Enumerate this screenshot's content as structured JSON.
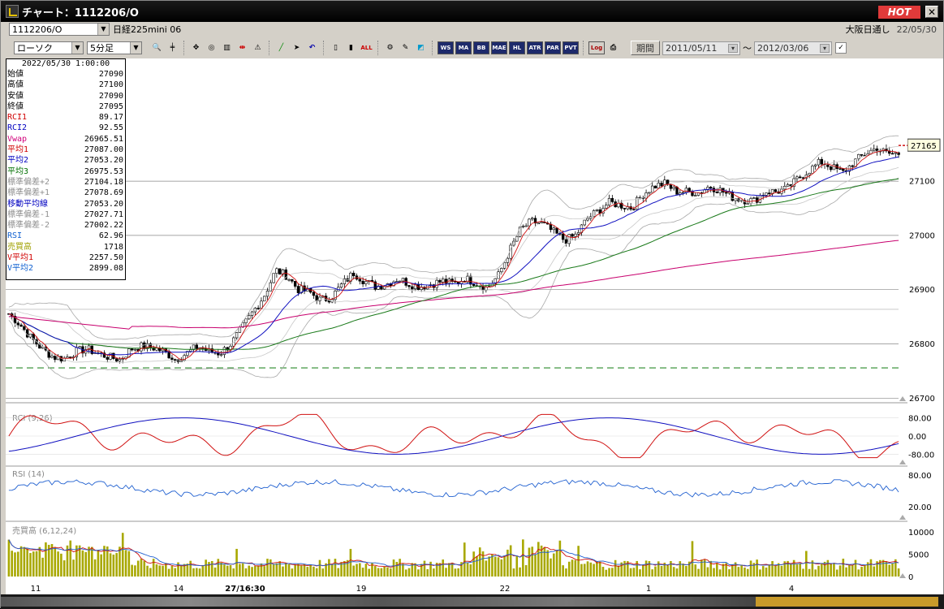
{
  "window": {
    "title": "チャート：1112206/O",
    "hot_label": "HOT",
    "close_label": "✕"
  },
  "row1": {
    "code": "1112206/O",
    "instrument": "日経225mini 06",
    "session": "大阪日通し",
    "date": "22/05/30"
  },
  "toolbar": {
    "chart_type": "ローソク",
    "period": "5分足",
    "labels": [
      "WS",
      "MA",
      "BB",
      "MAE",
      "HL",
      "ATR",
      "PAR",
      "PVT",
      "Log"
    ],
    "kikan_label": "期間",
    "date_from": "2011/05/11",
    "tilde": "〜",
    "date_to": "2012/03/06"
  },
  "info_panel": {
    "datetime": "2022/05/30 1:00:00",
    "rows": [
      {
        "label": "始値",
        "value": "27090",
        "color": "#000"
      },
      {
        "label": "高値",
        "value": "27100",
        "color": "#000"
      },
      {
        "label": "安値",
        "value": "27090",
        "color": "#000"
      },
      {
        "label": "終値",
        "value": "27095",
        "color": "#000"
      },
      {
        "label": "RCI1",
        "value": "89.17",
        "color": "#d00000"
      },
      {
        "label": "RCI2",
        "value": "92.55",
        "color": "#0000c0"
      },
      {
        "label": "Vwap",
        "value": "26965.51",
        "color": "#d0007a"
      },
      {
        "label": "平均1",
        "value": "27087.00",
        "color": "#d00000"
      },
      {
        "label": "平均2",
        "value": "27053.20",
        "color": "#0000c0"
      },
      {
        "label": "平均3",
        "value": "26975.53",
        "color": "#007000"
      },
      {
        "label": "標準偏差+2",
        "value": "27104.18",
        "color": "#909090"
      },
      {
        "label": "標準偏差+1",
        "value": "27078.69",
        "color": "#909090"
      },
      {
        "label": "移動平均線",
        "value": "27053.20",
        "color": "#0000c0"
      },
      {
        "label": "標準偏差-1",
        "value": "27027.71",
        "color": "#909090"
      },
      {
        "label": "標準偏差-2",
        "value": "27002.22",
        "color": "#909090"
      },
      {
        "label": "RSI",
        "value": "62.96",
        "color": "#1060d0"
      },
      {
        "label": "売買高",
        "value": "1718",
        "color": "#a0a000"
      },
      {
        "label": "V平均1",
        "value": "2257.50",
        "color": "#d00000"
      },
      {
        "label": "V平均2",
        "value": "2899.08",
        "color": "#1060d0"
      }
    ]
  },
  "chart_data": {
    "type": "candlestick",
    "price_axis": {
      "ticks": [
        "26700",
        "26800",
        "26900",
        "27000",
        "27100"
      ],
      "current": "27165"
    },
    "x_ticks": [
      "11",
      "14",
      "27/16:30",
      "19",
      "22",
      "1",
      "4"
    ],
    "close_path": [
      26855,
      26835,
      26810,
      26790,
      26775,
      26772,
      26785,
      26790,
      26782,
      26775,
      26770,
      26790,
      26795,
      26792,
      26785,
      26770,
      26782,
      26795,
      26785,
      26782,
      26800,
      26830,
      26860,
      26890,
      26935,
      26925,
      26900,
      26895,
      26880,
      26885,
      26910,
      26930,
      26915,
      26905,
      26910,
      26920,
      26910,
      26905,
      26910,
      26915,
      26910,
      26920,
      26912,
      26902,
      26925,
      26970,
      27010,
      27025,
      27020,
      27005,
      26990,
      27000,
      27030,
      27045,
      27060,
      27055,
      27050,
      27075,
      27090,
      27095,
      27080,
      27080,
      27078,
      27090,
      27082,
      27070,
      27065,
      27063,
      27080,
      27080,
      27085,
      27105,
      27120,
      27135,
      27125,
      27115,
      27135,
      27150,
      27160,
      27150,
      27150
    ],
    "panels": [
      {
        "name": "RCI (9,26)",
        "ticks": [
          "80.00",
          "0.00",
          "-80.00"
        ]
      },
      {
        "name": "RSI (14)",
        "ticks": [
          "80.00",
          "20.00"
        ]
      },
      {
        "name": "売買高 (6,12,24)",
        "ticks": [
          "10000",
          "5000",
          "0"
        ]
      }
    ]
  }
}
